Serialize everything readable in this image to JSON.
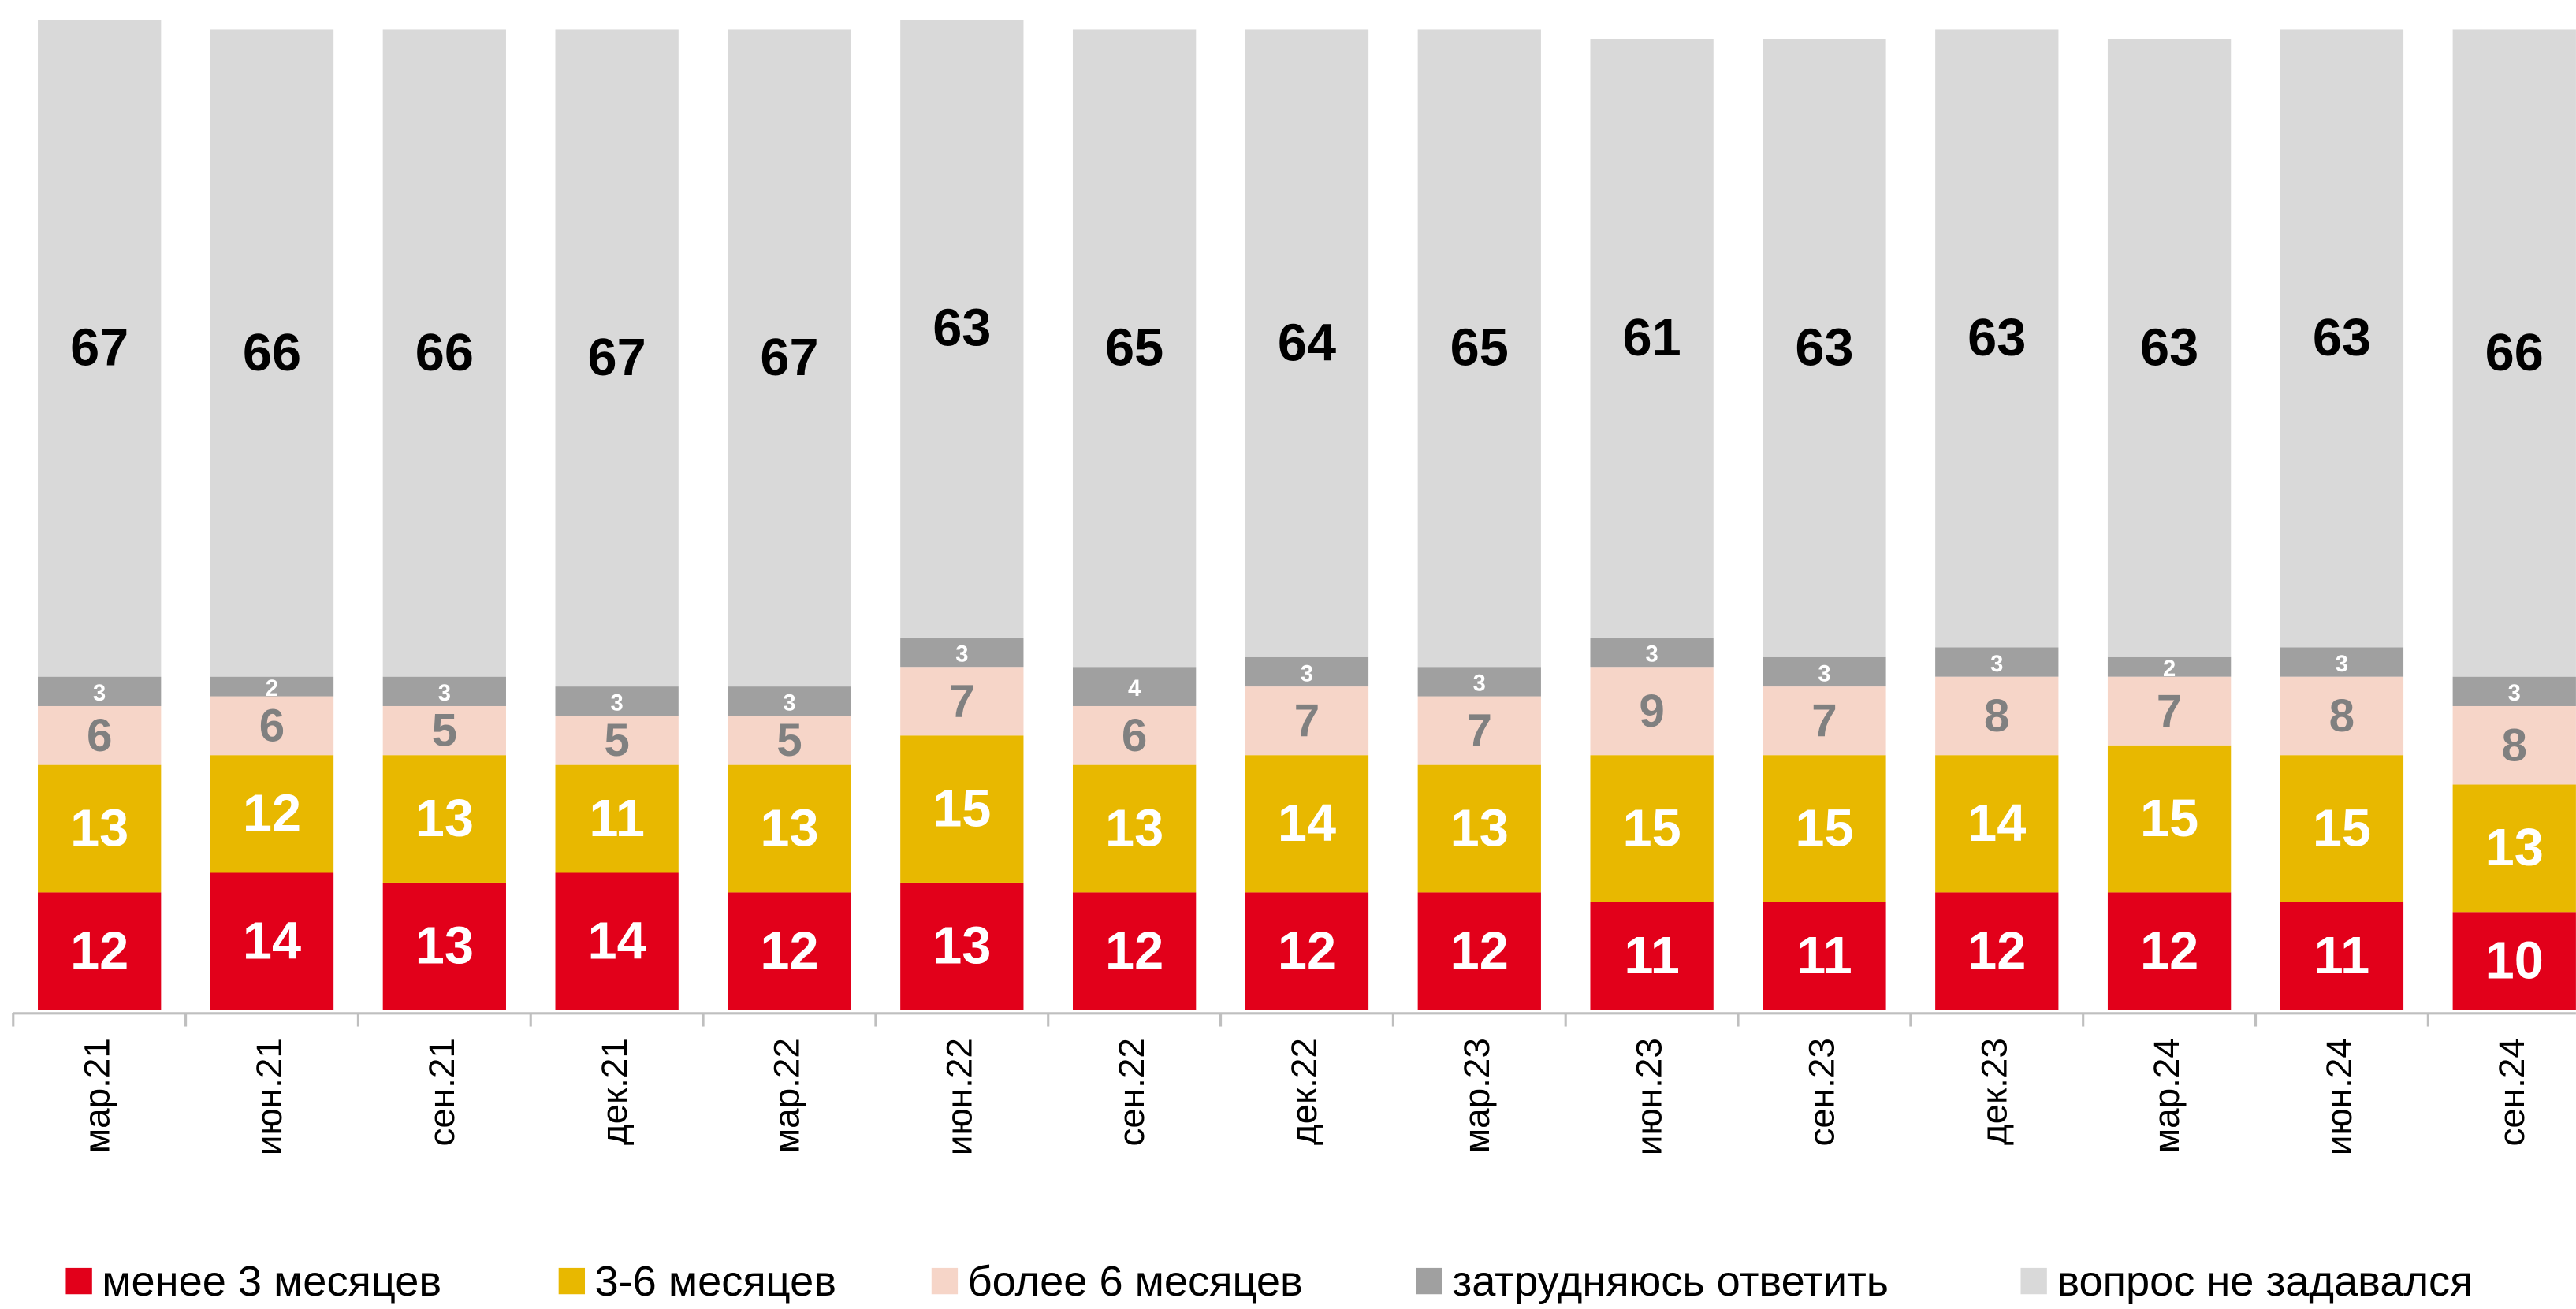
{
  "chart_data": {
    "type": "stacked-bar",
    "categories": [
      "мар.21",
      "июн.21",
      "сен.21",
      "дек.21",
      "мар.22",
      "июн.22",
      "сен.22",
      "дек.22",
      "мар.23",
      "июн.23",
      "сен.23",
      "дек.23",
      "мар.24",
      "июн.24",
      "сен.24"
    ],
    "series": [
      {
        "name": "менее 3 месяцев",
        "color": "#e2001a",
        "values": [
          12,
          14,
          13,
          14,
          12,
          13,
          12,
          12,
          12,
          11,
          11,
          12,
          12,
          11,
          10
        ]
      },
      {
        "name": "3-6 месяцев",
        "color": "#e8b800",
        "values": [
          13,
          12,
          13,
          11,
          13,
          15,
          13,
          14,
          13,
          15,
          15,
          14,
          15,
          15,
          13
        ]
      },
      {
        "name": "более 6 месяцев",
        "color": "#f6d5c8",
        "values": [
          6,
          6,
          5,
          5,
          5,
          7,
          6,
          7,
          7,
          9,
          7,
          8,
          7,
          8,
          8
        ]
      },
      {
        "name": "затрудняюсь ответить",
        "color": "#a0a0a0",
        "values": [
          3,
          2,
          3,
          3,
          3,
          3,
          4,
          3,
          3,
          3,
          3,
          3,
          2,
          3,
          3
        ]
      },
      {
        "name": "вопрос не задавался",
        "color": "#d9d9d9",
        "values": [
          67,
          66,
          66,
          67,
          67,
          63,
          65,
          64,
          65,
          61,
          63,
          63,
          63,
          63,
          66
        ]
      }
    ],
    "ylim": [
      0,
      101
    ]
  }
}
